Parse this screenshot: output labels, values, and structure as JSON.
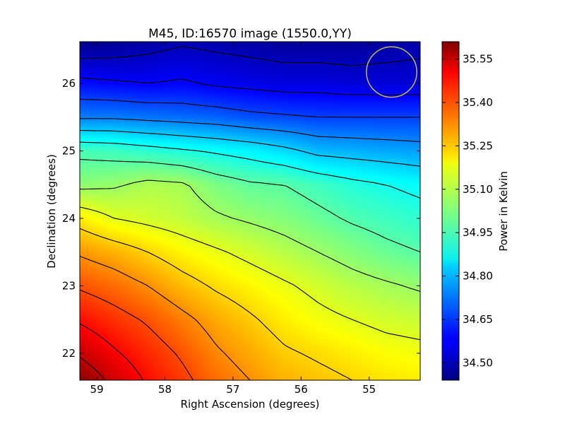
{
  "chart_data": {
    "type": "heatmap",
    "title": "M45, ID:16570 image (1550.0,YY)",
    "xlabel": "Right Ascension (degrees)",
    "ylabel": "Declination (degrees)",
    "xlim": [
      59.25,
      54.25
    ],
    "ylim": [
      21.6,
      26.62
    ],
    "x_ticks": [
      {
        "value": 59,
        "label": "59"
      },
      {
        "value": 58,
        "label": "58"
      },
      {
        "value": 57,
        "label": "57"
      },
      {
        "value": 56,
        "label": "56"
      },
      {
        "value": 55,
        "label": "55"
      }
    ],
    "y_ticks": [
      {
        "value": 22,
        "label": "22"
      },
      {
        "value": 23,
        "label": "23"
      },
      {
        "value": 24,
        "label": "24"
      },
      {
        "value": 25,
        "label": "25"
      },
      {
        "value": 26,
        "label": "26"
      }
    ],
    "colorbar": {
      "label": "Power in Kelvin",
      "range": [
        34.44,
        35.61
      ],
      "ticks": [
        {
          "value": 34.5,
          "label": "34.50"
        },
        {
          "value": 34.65,
          "label": "34.65"
        },
        {
          "value": 34.8,
          "label": "34.80"
        },
        {
          "value": 34.95,
          "label": "34.95"
        },
        {
          "value": 35.1,
          "label": "35.10"
        },
        {
          "value": 35.25,
          "label": "35.25"
        },
        {
          "value": 35.4,
          "label": "35.40"
        },
        {
          "value": 35.55,
          "label": "35.55"
        }
      ]
    },
    "colormap": "jet",
    "beam_circle": {
      "ra": 54.67,
      "dec": 26.17,
      "radius_deg": 0.37,
      "color": "#c8b45a"
    },
    "field": {
      "ra": [
        59.25,
        58.75,
        58.25,
        57.75,
        57.25,
        56.75,
        56.25,
        55.75,
        55.25,
        54.75,
        54.25
      ],
      "dec": [
        21.6,
        22.0,
        22.5,
        23.0,
        23.5,
        24.0,
        24.5,
        25.0,
        25.5,
        26.0,
        26.62
      ],
      "values": [
        [
          35.6,
          35.52,
          35.45,
          35.4,
          35.34,
          35.3,
          35.26,
          35.24,
          35.22,
          35.2,
          35.19
        ],
        [
          35.53,
          35.47,
          35.42,
          35.37,
          35.31,
          35.27,
          35.23,
          35.21,
          35.19,
          35.17,
          35.16
        ],
        [
          35.45,
          35.41,
          35.37,
          35.32,
          35.27,
          35.23,
          35.19,
          35.16,
          35.14,
          35.12,
          35.11
        ],
        [
          35.37,
          35.34,
          35.3,
          35.25,
          35.21,
          35.18,
          35.15,
          35.12,
          35.09,
          35.07,
          35.05
        ],
        [
          35.29,
          35.26,
          35.22,
          35.18,
          35.15,
          35.12,
          35.09,
          35.06,
          35.03,
          35.0,
          34.98
        ],
        [
          35.19,
          35.14,
          35.12,
          35.1,
          35.07,
          35.05,
          35.03,
          35.0,
          34.97,
          34.95,
          34.93
        ],
        [
          35.04,
          35.05,
          35.08,
          35.07,
          35.02,
          34.99,
          34.98,
          34.95,
          34.92,
          34.9,
          34.88
        ],
        [
          34.96,
          34.95,
          34.93,
          34.91,
          34.89,
          34.87,
          34.84,
          34.8,
          34.79,
          34.78,
          34.77
        ],
        [
          34.73,
          34.73,
          34.72,
          34.71,
          34.7,
          34.68,
          34.67,
          34.66,
          34.66,
          34.66,
          34.66
        ],
        [
          34.6,
          34.59,
          34.58,
          34.59,
          34.57,
          34.56,
          34.55,
          34.55,
          34.54,
          34.54,
          34.54
        ],
        [
          34.45,
          34.46,
          34.48,
          34.5,
          34.49,
          34.48,
          34.47,
          34.47,
          34.47,
          34.48,
          34.49
        ]
      ],
      "contour_levels": [
        34.51,
        34.58,
        34.66,
        34.74,
        34.82,
        34.9,
        34.98,
        35.06,
        35.14,
        35.22,
        35.3,
        35.38,
        35.46,
        35.54
      ]
    },
    "grid": false,
    "legend": "none"
  }
}
